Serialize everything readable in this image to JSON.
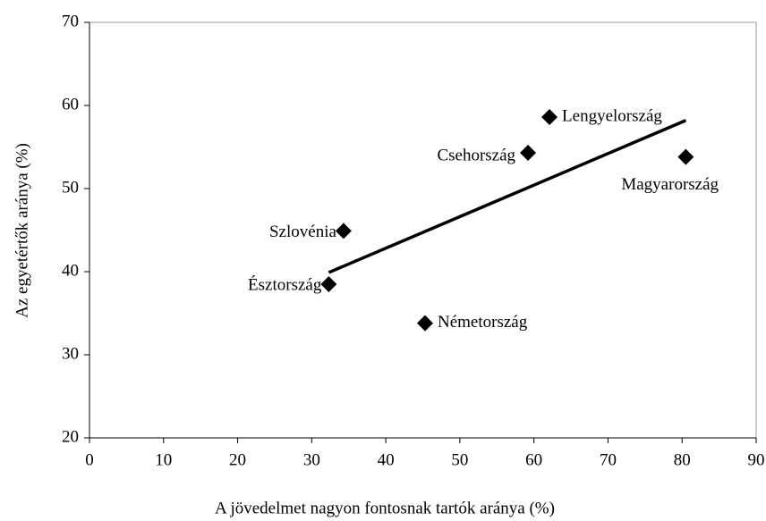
{
  "chart_data": {
    "type": "scatter",
    "xlabel": "A jövedelmet nagyon fontosnak tartók aránya (%)",
    "ylabel": "Az egyetértők aránya (%)",
    "series": [
      {
        "color": "#000000",
        "labels": [
          "Lengyelország",
          "Csehország",
          "Magyarország",
          "Szlovénia",
          "Észtország",
          "Németország"
        ],
        "x": [
          62.1,
          59.2,
          80.5,
          34.3,
          32.3,
          45.3
        ],
        "values": [
          58.6,
          54.3,
          53.8,
          44.9,
          38.5,
          33.8
        ]
      }
    ],
    "trendline": {
      "color": "#000000",
      "x": [
        32.3,
        80.5
      ],
      "values": [
        39.9,
        58.2
      ]
    },
    "xlim": [
      0,
      90
    ],
    "xticks": [
      0,
      10,
      20,
      30,
      40,
      50,
      60,
      70,
      80,
      90
    ],
    "ylim": [
      20,
      70
    ],
    "yticks": [
      20,
      30,
      40,
      50,
      60,
      70
    ]
  }
}
